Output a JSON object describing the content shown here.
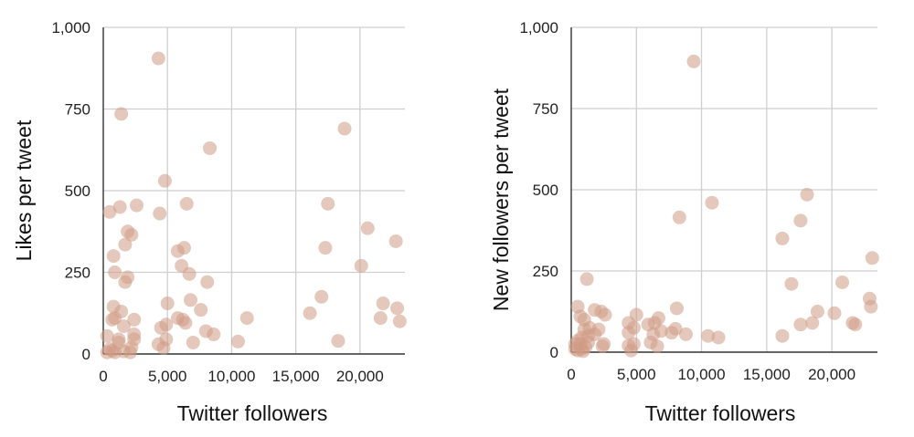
{
  "chart_data": [
    {
      "type": "scatter",
      "title": "",
      "xlabel": "Twitter followers",
      "ylabel": "Likes per tweet",
      "xlim": [
        0,
        23500
      ],
      "ylim": [
        0,
        1000
      ],
      "xticks": [
        0,
        5000,
        10000,
        15000,
        20000
      ],
      "xtick_labels": [
        "0",
        "5,000",
        "10,000",
        "15,000",
        "20,000"
      ],
      "yticks": [
        0,
        250,
        500,
        750,
        1000
      ],
      "ytick_labels": [
        "0",
        "250",
        "500",
        "750",
        "1,000"
      ],
      "grid": true,
      "color": "#d09a85",
      "points": [
        [
          4300,
          905
        ],
        [
          1400,
          735
        ],
        [
          8300,
          630
        ],
        [
          18800,
          690
        ],
        [
          4800,
          530
        ],
        [
          500,
          435
        ],
        [
          1300,
          450
        ],
        [
          2600,
          455
        ],
        [
          4400,
          430
        ],
        [
          6500,
          460
        ],
        [
          17500,
          460
        ],
        [
          1900,
          375
        ],
        [
          2200,
          365
        ],
        [
          1700,
          335
        ],
        [
          20600,
          385
        ],
        [
          22800,
          345
        ],
        [
          17300,
          325
        ],
        [
          6300,
          325
        ],
        [
          5800,
          315
        ],
        [
          800,
          300
        ],
        [
          6100,
          270
        ],
        [
          20100,
          270
        ],
        [
          900,
          250
        ],
        [
          1900,
          235
        ],
        [
          6700,
          245
        ],
        [
          1700,
          220
        ],
        [
          8100,
          220
        ],
        [
          6800,
          165
        ],
        [
          17000,
          175
        ],
        [
          5000,
          155
        ],
        [
          21800,
          155
        ],
        [
          22900,
          140
        ],
        [
          800,
          145
        ],
        [
          1400,
          130
        ],
        [
          7600,
          135
        ],
        [
          16100,
          125
        ],
        [
          11200,
          110
        ],
        [
          21600,
          110
        ],
        [
          23100,
          100
        ],
        [
          700,
          105
        ],
        [
          900,
          110
        ],
        [
          2400,
          105
        ],
        [
          5800,
          110
        ],
        [
          6200,
          105
        ],
        [
          6400,
          95
        ],
        [
          1600,
          85
        ],
        [
          4900,
          90
        ],
        [
          4500,
          80
        ],
        [
          8000,
          70
        ],
        [
          8600,
          60
        ],
        [
          2400,
          60
        ],
        [
          2400,
          45
        ],
        [
          1200,
          45
        ],
        [
          1200,
          35
        ],
        [
          18300,
          40
        ],
        [
          10500,
          38
        ],
        [
          4900,
          45
        ],
        [
          7000,
          35
        ],
        [
          4300,
          30
        ],
        [
          4700,
          18
        ],
        [
          2200,
          20
        ],
        [
          300,
          55
        ],
        [
          500,
          15
        ],
        [
          700,
          10
        ],
        [
          900,
          5
        ],
        [
          1600,
          8
        ],
        [
          2100,
          5
        ],
        [
          300,
          5
        ]
      ]
    },
    {
      "type": "scatter",
      "title": "",
      "xlabel": "Twitter followers",
      "ylabel": "New followers per tweet",
      "xlim": [
        0,
        23500
      ],
      "ylim": [
        0,
        1000
      ],
      "xticks": [
        0,
        5000,
        10000,
        15000,
        20000
      ],
      "xtick_labels": [
        "0",
        "5,000",
        "10,000",
        "15,000",
        "20,000"
      ],
      "yticks": [
        0,
        250,
        500,
        750,
        1000
      ],
      "ytick_labels": [
        "0",
        "250",
        "500",
        "750",
        "1,000"
      ],
      "grid": true,
      "color": "#d09a85",
      "points": [
        [
          9400,
          895
        ],
        [
          18100,
          485
        ],
        [
          10800,
          460
        ],
        [
          8300,
          415
        ],
        [
          17600,
          405
        ],
        [
          16200,
          350
        ],
        [
          23100,
          290
        ],
        [
          1200,
          225
        ],
        [
          20800,
          215
        ],
        [
          16900,
          210
        ],
        [
          22900,
          165
        ],
        [
          500,
          140
        ],
        [
          23000,
          140
        ],
        [
          8100,
          135
        ],
        [
          1800,
          130
        ],
        [
          2300,
          125
        ],
        [
          18900,
          125
        ],
        [
          20200,
          120
        ],
        [
          700,
          110
        ],
        [
          1000,
          100
        ],
        [
          2600,
          115
        ],
        [
          5000,
          115
        ],
        [
          6700,
          105
        ],
        [
          21600,
          90
        ],
        [
          21800,
          85
        ],
        [
          18500,
          90
        ],
        [
          17600,
          85
        ],
        [
          6400,
          90
        ],
        [
          5900,
          85
        ],
        [
          4400,
          90
        ],
        [
          4800,
          75
        ],
        [
          1000,
          70
        ],
        [
          1400,
          75
        ],
        [
          2100,
          70
        ],
        [
          8000,
          72
        ],
        [
          6900,
          65
        ],
        [
          7700,
          60
        ],
        [
          6300,
          55
        ],
        [
          8800,
          55
        ],
        [
          10500,
          50
        ],
        [
          11300,
          45
        ],
        [
          16200,
          50
        ],
        [
          4400,
          60
        ],
        [
          1800,
          55
        ],
        [
          1300,
          50
        ],
        [
          800,
          45
        ],
        [
          500,
          35
        ],
        [
          300,
          25
        ],
        [
          700,
          25
        ],
        [
          1300,
          30
        ],
        [
          2500,
          25
        ],
        [
          2400,
          18
        ],
        [
          4400,
          20
        ],
        [
          4800,
          25
        ],
        [
          6100,
          30
        ],
        [
          6600,
          18
        ],
        [
          800,
          10
        ],
        [
          1100,
          15
        ],
        [
          500,
          5
        ],
        [
          900,
          3
        ],
        [
          4600,
          5
        ],
        [
          300,
          10
        ]
      ]
    }
  ]
}
